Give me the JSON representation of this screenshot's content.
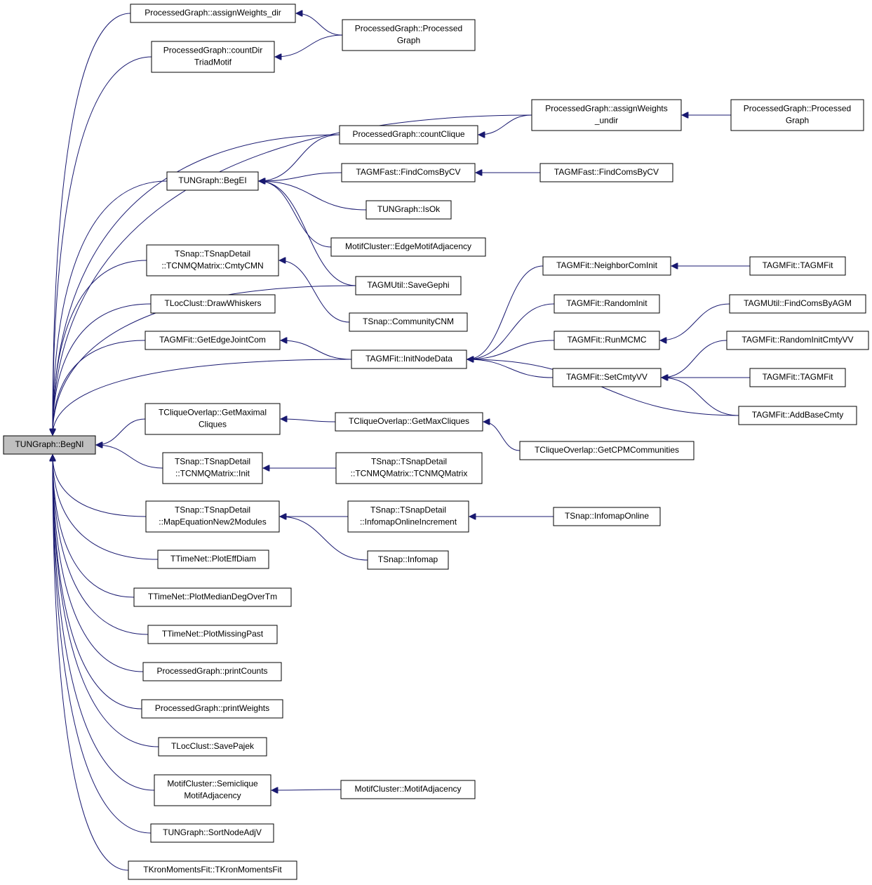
{
  "nodes": [
    {
      "lines": [
        "TUNGraph::BegNI"
      ]
    },
    {
      "lines": [
        "ProcessedGraph::assignWeights_dir"
      ]
    },
    {
      "lines": [
        "ProcessedGraph::Processed",
        "Graph"
      ]
    },
    {
      "lines": [
        "ProcessedGraph::countDir",
        "TriadMotif"
      ]
    },
    {
      "lines": [
        "ProcessedGraph::assignWeights",
        "_undir"
      ]
    },
    {
      "lines": [
        "ProcessedGraph::Processed",
        "Graph"
      ]
    },
    {
      "lines": [
        "ProcessedGraph::countClique"
      ]
    },
    {
      "lines": [
        "TUNGraph::BegEI"
      ]
    },
    {
      "lines": [
        "TAGMFast::FindComsByCV"
      ]
    },
    {
      "lines": [
        "TAGMFast::FindComsByCV"
      ]
    },
    {
      "lines": [
        "TUNGraph::IsOk"
      ]
    },
    {
      "lines": [
        "MotifCluster::EdgeMotifAdjacency"
      ]
    },
    {
      "lines": [
        "TSnap::TSnapDetail",
        "::TCNMQMatrix::CmtyCMN"
      ]
    },
    {
      "lines": [
        "TAGMUtil::SaveGephi"
      ]
    },
    {
      "lines": [
        "TLocClust::DrawWhiskers"
      ]
    },
    {
      "lines": [
        "TSnap::CommunityCNM"
      ]
    },
    {
      "lines": [
        "TAGMFit::NeighborComInit"
      ]
    },
    {
      "lines": [
        "TAGMFit::TAGMFit"
      ]
    },
    {
      "lines": [
        "TAGMFit::RandomInit"
      ]
    },
    {
      "lines": [
        "TAGMUtil::FindComsByAGM"
      ]
    },
    {
      "lines": [
        "TAGMFit::GetEdgeJointCom"
      ]
    },
    {
      "lines": [
        "TAGMFit::InitNodeData"
      ]
    },
    {
      "lines": [
        "TAGMFit::RunMCMC"
      ]
    },
    {
      "lines": [
        "TAGMFit::RandomInitCmtyVV"
      ]
    },
    {
      "lines": [
        "TAGMFit::SetCmtyVV"
      ]
    },
    {
      "lines": [
        "TAGMFit::TAGMFit"
      ]
    },
    {
      "lines": [
        "TAGMFit::AddBaseCmty"
      ]
    },
    {
      "lines": [
        "TCliqueOverlap::GetMaximal",
        "Cliques"
      ]
    },
    {
      "lines": [
        "TCliqueOverlap::GetMaxCliques"
      ]
    },
    {
      "lines": [
        "TCliqueOverlap::GetCPMCommunities"
      ]
    },
    {
      "lines": [
        "TSnap::TSnapDetail",
        "::TCNMQMatrix::Init"
      ]
    },
    {
      "lines": [
        "TSnap::TSnapDetail",
        "::TCNMQMatrix::TCNMQMatrix"
      ]
    },
    {
      "lines": [
        "TSnap::TSnapDetail",
        "::MapEquationNew2Modules"
      ]
    },
    {
      "lines": [
        "TSnap::TSnapDetail",
        "::InfomapOnlineIncrement"
      ]
    },
    {
      "lines": [
        "TSnap::InfomapOnline"
      ]
    },
    {
      "lines": [
        "TSnap::Infomap"
      ]
    },
    {
      "lines": [
        "TTimeNet::PlotEffDiam"
      ]
    },
    {
      "lines": [
        "TTimeNet::PlotMedianDegOverTm"
      ]
    },
    {
      "lines": [
        "TTimeNet::PlotMissingPast"
      ]
    },
    {
      "lines": [
        "ProcessedGraph::printCounts"
      ]
    },
    {
      "lines": [
        "ProcessedGraph::printWeights"
      ]
    },
    {
      "lines": [
        "TLocClust::SavePajek"
      ]
    },
    {
      "lines": [
        "MotifCluster::Semiclique",
        "MotifAdjacency"
      ]
    },
    {
      "lines": [
        "MotifCluster::MotifAdjacency"
      ]
    },
    {
      "lines": [
        "TUNGraph::SortNodeAdjV"
      ]
    },
    {
      "lines": [
        "TKronMomentsFit::TKronMomentsFit"
      ]
    }
  ]
}
